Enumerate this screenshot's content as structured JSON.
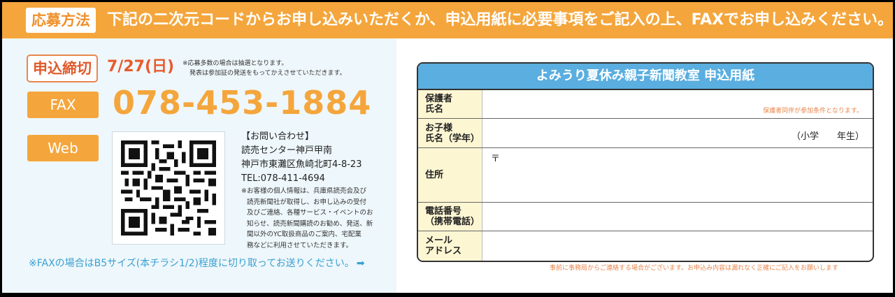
{
  "banner": {
    "tag": "応募方法",
    "text": "下記の二次元コードからお申し込みいただくか、申込用紙に必要事項をご記入の上、FAXでお申し込みください。"
  },
  "deadline": {
    "label": "申込締切",
    "date": "7/27(日)",
    "note_lines": [
      "※応募多数の場合は抽選となります。",
      "発表は参加証の発送をもってかえさせていただきます。"
    ]
  },
  "fax": {
    "label": "FAX",
    "number": "078-453-1884"
  },
  "web": {
    "label": "Web"
  },
  "contact": {
    "heading": "【お問い合わせ】",
    "name": "読売センター神戸甲南",
    "address": "神戸市東灘区魚崎北町4-8-23",
    "tel": "TEL:078-411-4694"
  },
  "privacy_lines": [
    "※お客様の個人情報は、兵庫県読売会及び",
    "読売新聞社が取得し、お申し込みの受付",
    "及びご連絡、各種サービス・イベントのお",
    "知らせ、読売新聞購読のお勧め、発送、新",
    "聞以外のYC取扱商品のご案内、宅配業",
    "務などに利用させていただきます。"
  ],
  "fax_note": {
    "text": "※FAXの場合はB5サイズ(本チラシ1/2)程度に切り取ってお送りください。",
    "arrow": "➡"
  },
  "form": {
    "title": "よみうり夏休み親子新聞教室 申込用紙",
    "rows": [
      {
        "label": [
          "保護者",
          "氏名"
        ],
        "note": "保護者同伴が参加条件となります。"
      },
      {
        "label": [
          "お子様",
          "氏名（学年）"
        ],
        "grade": "（小学　　年生）"
      },
      {
        "label": [
          "住所"
        ],
        "postal": "〒"
      },
      {
        "label": [
          "電話番号",
          "（携帯電話）"
        ]
      },
      {
        "label": [
          "メール",
          "アドレス"
        ]
      }
    ],
    "footer": "事前に事務局からご連絡する場合がございます。お申込み内容は漏れなく正確にご記入をお願いします"
  },
  "colors": {
    "banner": "#f4a63c",
    "accent_orange": "#e85a2a",
    "form_header": "#5aaee0",
    "label_bg": "#fdf6d3",
    "left_panel_bg": "#eef7fb"
  },
  "icons": {
    "qr": "qr-code-icon",
    "arrow": "arrow-right-icon"
  }
}
